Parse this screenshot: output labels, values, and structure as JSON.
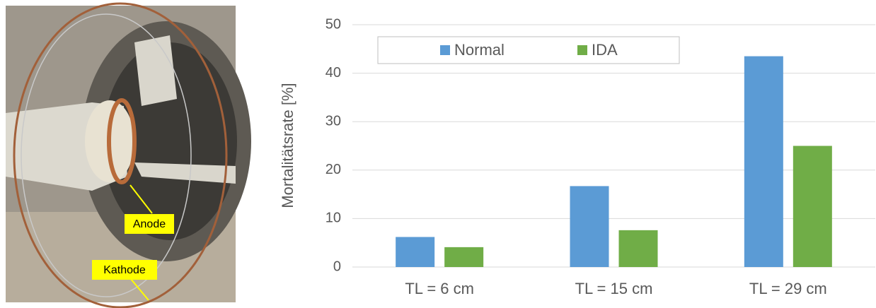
{
  "photo": {
    "labels": [
      "Anode",
      "Kathode"
    ]
  },
  "chart_data": {
    "type": "bar",
    "y_label": "Mortalitätsrate  [%]",
    "categories": [
      "TL = 6 cm",
      "TL = 15 cm",
      "TL = 29 cm"
    ],
    "series": [
      {
        "name": "Normal",
        "color": "#5b9bd5",
        "values": [
          6.2,
          16.7,
          43.5
        ]
      },
      {
        "name": "IDA",
        "color": "#70ad47",
        "values": [
          4.1,
          7.6,
          25
        ]
      }
    ],
    "ylim": [
      0,
      50
    ],
    "yticks": [
      0,
      10,
      20,
      30,
      40,
      50
    ],
    "grid": true,
    "legend": "top-left"
  }
}
